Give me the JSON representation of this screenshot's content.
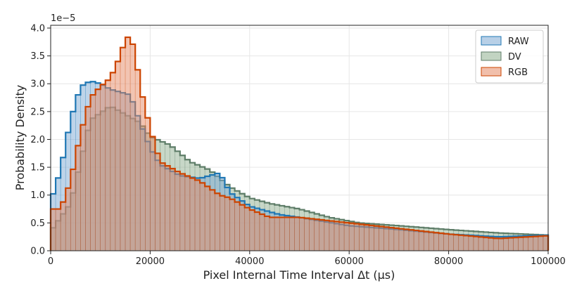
{
  "chart_data": {
    "type": "area",
    "title": "",
    "xlabel": "Pixel Internal Time Interval Δt (μs)",
    "ylabel": "Probability Density",
    "offset_text": "1e−5",
    "xlim": [
      0,
      100000
    ],
    "ylim": [
      0,
      4.05
    ],
    "y_scale_factor": 1e-05,
    "grid": true,
    "legend_position": "top-right",
    "x_ticks": [
      0,
      20000,
      40000,
      60000,
      80000,
      100000
    ],
    "x_tick_labels": [
      "0",
      "20000",
      "40000",
      "60000",
      "80000",
      "100000"
    ],
    "y_ticks": [
      0.0,
      0.5,
      1.0,
      1.5,
      2.0,
      2.5,
      3.0,
      3.5,
      4.0
    ],
    "y_tick_labels": [
      "0.0",
      "0.5",
      "1.0",
      "1.5",
      "2.0",
      "2.5",
      "3.0",
      "3.5",
      "4.0"
    ],
    "series": [
      {
        "name": "DV",
        "fill": "#8fb08f",
        "edge": "#5e7d68",
        "x": [
          0,
          4000,
          8000,
          12000,
          16000,
          18000,
          20000,
          24000,
          28000,
          32000,
          36000,
          40000,
          44000,
          50000,
          56000,
          62000,
          70000,
          80000,
          90000,
          100000
        ],
        "y": [
          0.35,
          0.85,
          2.35,
          2.6,
          2.4,
          2.3,
          2.05,
          1.9,
          1.6,
          1.45,
          1.15,
          0.95,
          0.85,
          0.75,
          0.6,
          0.5,
          0.45,
          0.38,
          0.32,
          0.28
        ]
      },
      {
        "name": "RAW",
        "fill": "#7ea9d3",
        "edge": "#1f77b4",
        "x": [
          0,
          2000,
          4000,
          6000,
          8000,
          10000,
          12000,
          16000,
          18000,
          20000,
          22000,
          26000,
          30000,
          34000,
          36000,
          40000,
          46000,
          50000,
          60000,
          70000,
          80000,
          90000,
          100000
        ],
        "y": [
          0.88,
          1.45,
          2.35,
          2.95,
          3.05,
          3.0,
          2.9,
          2.8,
          2.3,
          1.85,
          1.55,
          1.35,
          1.3,
          1.4,
          1.05,
          0.8,
          0.65,
          0.6,
          0.45,
          0.38,
          0.3,
          0.25,
          0.28
        ]
      },
      {
        "name": "RGB",
        "fill": "#e58a66",
        "edge": "#cc4400",
        "x": [
          0,
          2000,
          4000,
          6000,
          8000,
          10000,
          12000,
          14000,
          15000,
          16000,
          17000,
          18000,
          20000,
          22000,
          26000,
          30000,
          34000,
          36000,
          40000,
          44000,
          50000,
          60000,
          70000,
          80000,
          90000,
          100000
        ],
        "y": [
          0.75,
          0.75,
          1.25,
          2.1,
          2.75,
          2.95,
          3.1,
          3.5,
          3.8,
          3.87,
          3.55,
          2.95,
          2.2,
          1.6,
          1.4,
          1.25,
          1.0,
          0.95,
          0.75,
          0.6,
          0.6,
          0.5,
          0.4,
          0.3,
          0.22,
          0.27
        ]
      }
    ],
    "legend_order": [
      "RAW",
      "DV",
      "RGB"
    ]
  }
}
